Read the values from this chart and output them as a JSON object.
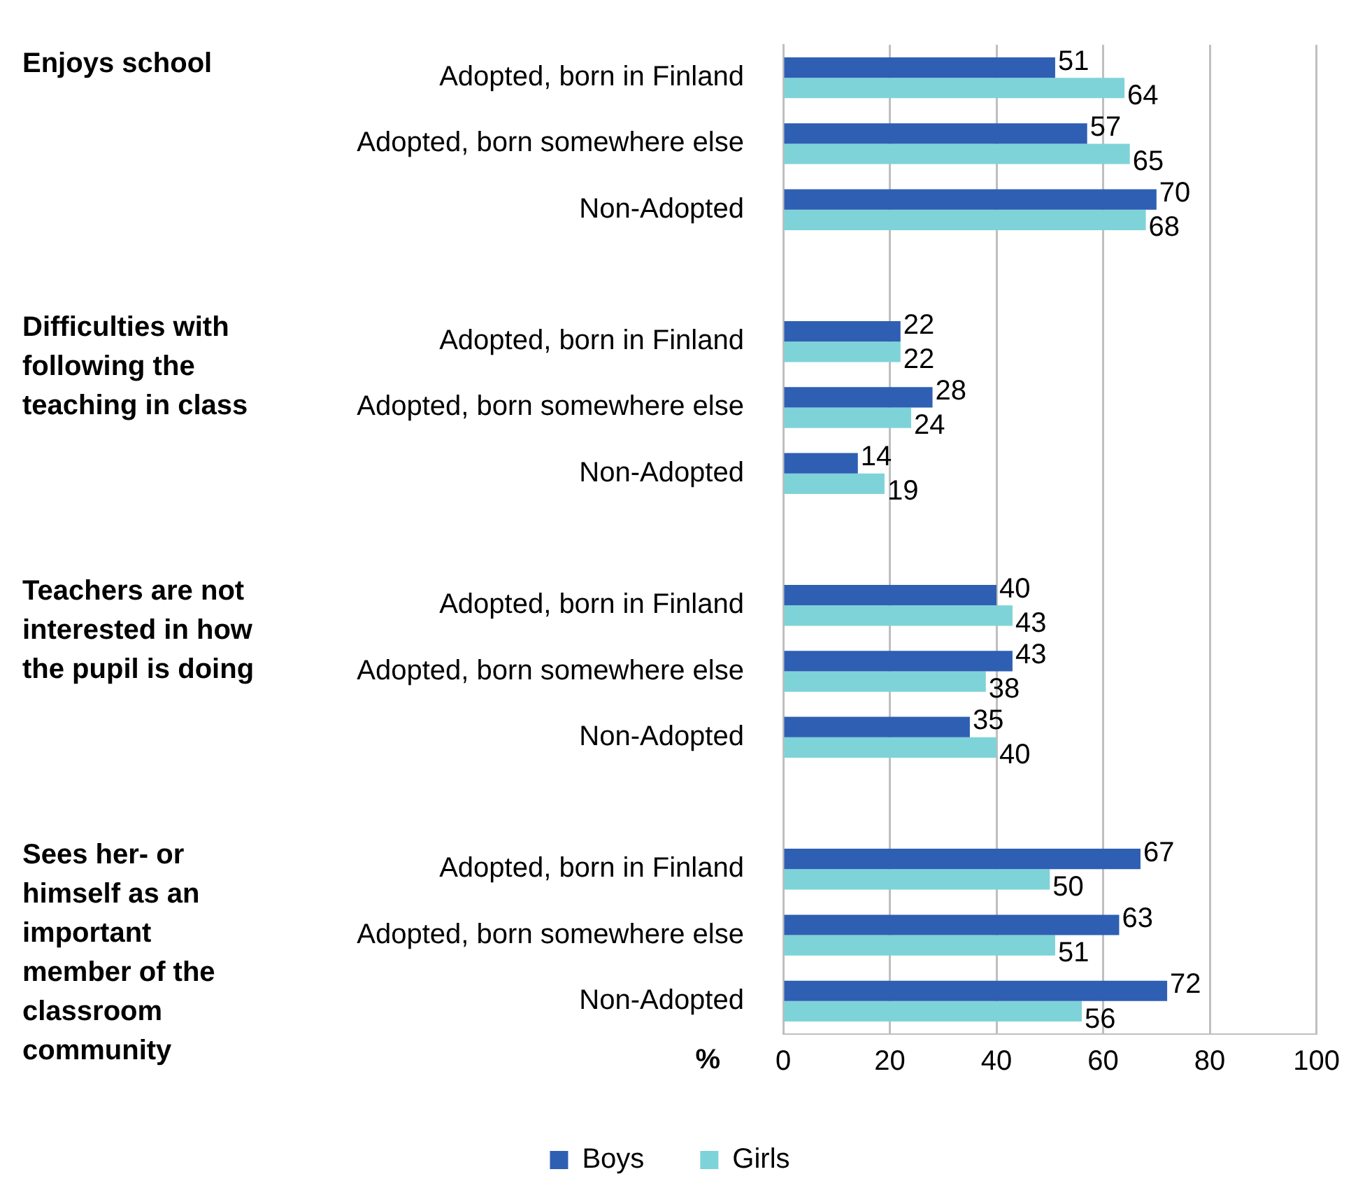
{
  "chart_data": {
    "type": "bar",
    "orientation": "horizontal",
    "categories": [
      "Adopted, born in Finland",
      "Adopted, born somewhere else",
      "Non-Adopted",
      null,
      "Adopted, born in Finland",
      "Adopted, born somewhere else",
      "Non-Adopted",
      null,
      "Adopted, born in Finland",
      "Adopted, born somewhere else",
      "Non-Adopted",
      null,
      "Adopted, born in Finland",
      "Adopted, born somewhere else",
      "Non-Adopted"
    ],
    "series": [
      {
        "name": "Boys",
        "color": "#2e5fb3",
        "values": [
          51,
          57,
          70,
          null,
          22,
          28,
          14,
          null,
          40,
          43,
          35,
          null,
          67,
          63,
          72
        ]
      },
      {
        "name": "Girls",
        "color": "#7ed3d8",
        "values": [
          64,
          65,
          68,
          null,
          22,
          24,
          19,
          null,
          43,
          38,
          40,
          null,
          50,
          51,
          56
        ]
      }
    ],
    "xlabel": "%",
    "xlim": [
      0,
      100
    ],
    "xticks": [
      0,
      20,
      40,
      60,
      80,
      100
    ],
    "grid": "x",
    "legend": "bottom",
    "data_labels": true,
    "annotations": [
      "Enjoys school",
      "Difficulties with following the teaching in class",
      "Teachers are not interested in how the pupil is doing",
      "Sees her- or himself as an important member of the classroom community"
    ]
  }
}
